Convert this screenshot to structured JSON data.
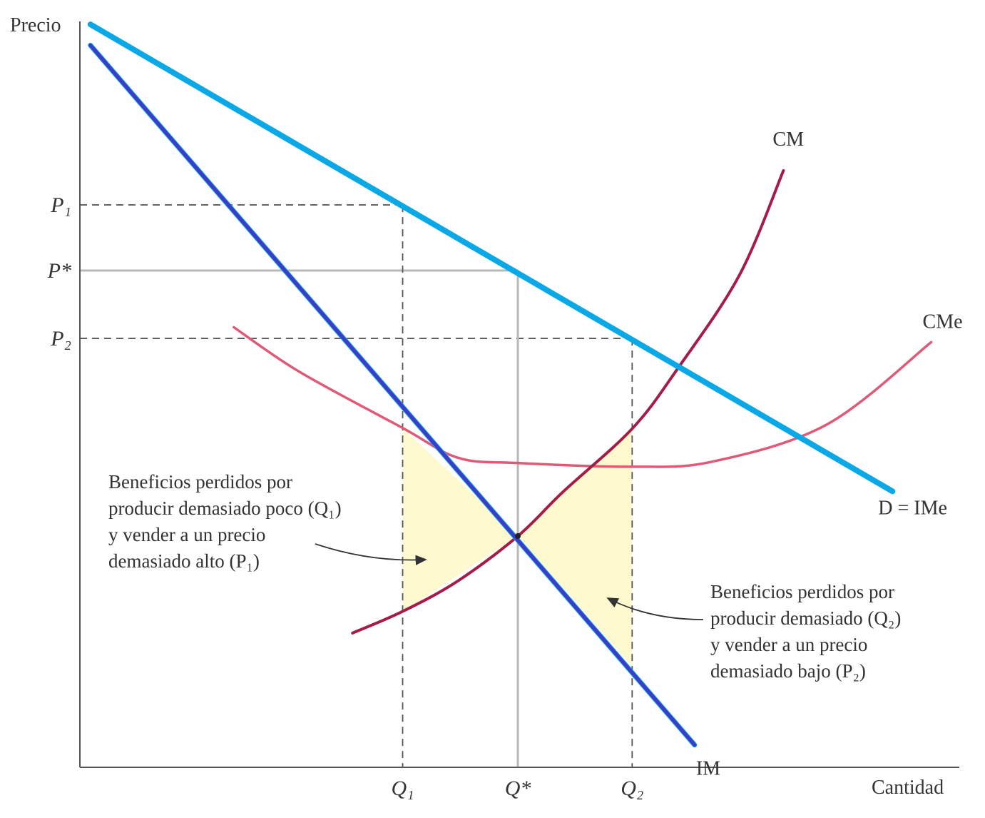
{
  "chart_data": {
    "type": "line",
    "title": "",
    "xlabel": "Cantidad",
    "ylabel": "Precio",
    "xlim": [
      0,
      100
    ],
    "ylim": [
      0,
      100
    ],
    "grid": false,
    "x_ticks": [
      {
        "label": "Q₁",
        "value": 36.7
      },
      {
        "label": "Q*",
        "value": 49.8
      },
      {
        "label": "Q₂",
        "value": 62.8
      }
    ],
    "y_ticks": [
      {
        "label": "P₁",
        "value": 75.4
      },
      {
        "label": "P*",
        "value": 66.6
      },
      {
        "label": "P₂",
        "value": 57.5
      }
    ],
    "series": [
      {
        "name": "D = IMe",
        "color": "#0aa8e6",
        "points": [
          [
            1.2,
            99.6
          ],
          [
            92.4,
            37.0
          ]
        ]
      },
      {
        "name": "IM",
        "color": "#3c3cc8",
        "points": [
          [
            1.2,
            96.8
          ],
          [
            69.9,
            3.0
          ]
        ]
      },
      {
        "name": "CM",
        "color": "#a51c47",
        "points": [
          [
            31.0,
            18.0
          ],
          [
            36.7,
            20.9
          ],
          [
            43.0,
            25.0
          ],
          [
            49.8,
            31.0
          ],
          [
            55.0,
            37.0
          ],
          [
            62.8,
            45.4
          ],
          [
            68.0,
            53.5
          ],
          [
            75.0,
            66.0
          ],
          [
            80.0,
            80.0
          ]
        ]
      },
      {
        "name": "CMe",
        "color": "#e05a78",
        "points": [
          [
            17.5,
            59.0
          ],
          [
            25.0,
            53.0
          ],
          [
            36.7,
            45.5
          ],
          [
            43.0,
            41.5
          ],
          [
            49.8,
            40.8
          ],
          [
            62.8,
            40.3
          ],
          [
            72.0,
            41.0
          ],
          [
            85.0,
            46.0
          ],
          [
            96.8,
            57.0
          ]
        ]
      }
    ],
    "shaded_regions": [
      {
        "name": "lost-profit-left",
        "color": "#fff9cf",
        "points": [
          [
            36.7,
            45.5
          ],
          [
            49.8,
            31.0
          ],
          [
            36.7,
            20.9
          ]
        ]
      },
      {
        "name": "lost-profit-right",
        "color": "#fff9cf",
        "points": [
          [
            49.8,
            31.0
          ],
          [
            62.8,
            45.4
          ],
          [
            62.8,
            13.5
          ]
        ]
      }
    ],
    "annotations": [
      {
        "lines": [
          "Beneficios perdidos por",
          "producir demasiado poco (Q₁)",
          "y vender a un precio",
          "demasiado alto (P₁)"
        ]
      },
      {
        "lines": [
          "Beneficios perdidos por",
          "producir demasiado (Q₂)",
          "y vender a un precio",
          "demasiado bajo (P₂)"
        ]
      }
    ]
  }
}
